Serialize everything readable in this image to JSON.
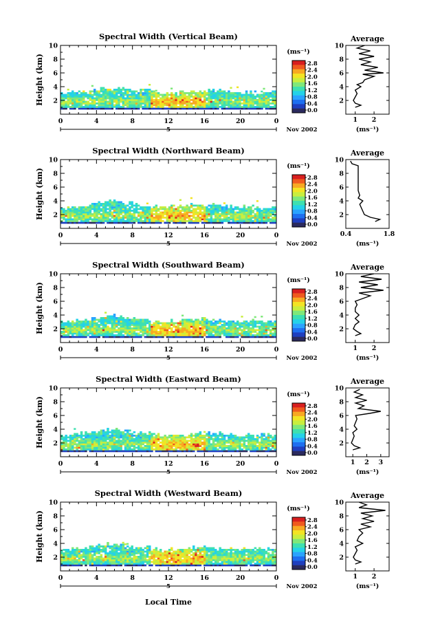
{
  "xaxis_label": "Local Time",
  "colorbar": {
    "unit_label": "(ms⁻¹)",
    "ticks": [
      "2.8",
      "2.4",
      "2.0",
      "1.6",
      "1.2",
      "0.8",
      "0.4",
      "0.0"
    ],
    "colors": [
      "#2b2a5e",
      "#1f3fbf",
      "#1e6ff0",
      "#2aa3ff",
      "#24d2e8",
      "#3ee0b0",
      "#7fe87a",
      "#c9ee3e",
      "#f3e424",
      "#f8a922",
      "#f05a1e",
      "#d81f1f"
    ]
  },
  "date_label": "Nov 2002",
  "day_label": "5",
  "avg_xlabel": "(ms⁻¹)",
  "chart_data": [
    {
      "type": "heatmap",
      "title": "Spectral Width (Vertical Beam)",
      "ylabel": "Height (km)",
      "xlim": [
        0,
        24
      ],
      "ylim": [
        0,
        10
      ],
      "xticks": [
        "0",
        "4",
        "8",
        "12",
        "16",
        "20",
        "0"
      ],
      "yticks": [
        "2",
        "4",
        "6",
        "8",
        "10"
      ],
      "cloud_top_km": [
        3.0,
        3.1,
        3.2,
        3.4,
        3.6,
        3.8,
        3.7,
        3.5,
        3.4,
        3.3,
        3.1,
        3.0,
        3.0,
        3.1,
        3.2,
        3.3,
        3.4,
        3.3,
        3.2,
        3.1,
        3.0,
        3.0,
        3.0,
        3.1,
        3.0
      ],
      "average": {
        "title": "Average",
        "xticks": [
          "1",
          "2"
        ],
        "xlim": [
          0.5,
          2.8
        ],
        "profile": [
          [
            1.0,
            1.0
          ],
          [
            1.3,
            1.3
          ],
          [
            1.0,
            1.6
          ],
          [
            0.9,
            2.0
          ],
          [
            1.0,
            2.5
          ],
          [
            1.1,
            3.0
          ],
          [
            1.0,
            3.5
          ],
          [
            1.3,
            4.0
          ],
          [
            1.1,
            4.3
          ],
          [
            1.4,
            4.6
          ],
          [
            1.5,
            5.0
          ],
          [
            2.0,
            5.5
          ],
          [
            1.4,
            5.8
          ],
          [
            2.5,
            6.0
          ],
          [
            1.5,
            6.4
          ],
          [
            2.2,
            6.8
          ],
          [
            1.3,
            7.2
          ],
          [
            1.8,
            7.6
          ],
          [
            1.2,
            8.0
          ],
          [
            2.0,
            8.4
          ],
          [
            1.2,
            8.8
          ],
          [
            1.8,
            9.2
          ],
          [
            1.1,
            9.6
          ],
          [
            1.5,
            10.0
          ]
        ]
      }
    },
    {
      "type": "heatmap",
      "title": "Spectral Width (Northward Beam)",
      "ylabel": "Height (km)",
      "xlim": [
        0,
        24
      ],
      "ylim": [
        0,
        10
      ],
      "xticks": [
        "0",
        "4",
        "8",
        "12",
        "16",
        "20",
        "0"
      ],
      "yticks": [
        "2",
        "4",
        "6",
        "8",
        "10"
      ],
      "cloud_top_km": [
        3.0,
        3.1,
        3.3,
        3.5,
        3.7,
        3.9,
        3.8,
        3.6,
        3.4,
        3.2,
        3.1,
        3.0,
        3.1,
        3.2,
        3.3,
        3.4,
        3.3,
        3.2,
        3.1,
        3.0,
        3.0,
        3.1,
        3.0,
        3.0,
        3.0
      ],
      "average": {
        "title": "Average",
        "xticks": [
          "0.4",
          "1.8"
        ],
        "xlim": [
          0.4,
          1.8
        ],
        "profile": [
          [
            1.35,
            1.0
          ],
          [
            1.5,
            1.3
          ],
          [
            1.2,
            1.6
          ],
          [
            1.0,
            2.0
          ],
          [
            0.95,
            2.5
          ],
          [
            0.9,
            3.0
          ],
          [
            0.85,
            3.5
          ],
          [
            0.95,
            4.0
          ],
          [
            0.8,
            4.4
          ],
          [
            0.85,
            4.8
          ],
          [
            0.8,
            5.5
          ],
          [
            0.8,
            6.5
          ],
          [
            0.8,
            7.5
          ],
          [
            0.8,
            8.5
          ],
          [
            0.8,
            9.1
          ],
          [
            0.6,
            9.4
          ],
          [
            0.55,
            9.8
          ]
        ]
      }
    },
    {
      "type": "heatmap",
      "title": "Spectral Width (Southward Beam)",
      "ylabel": "Height (km)",
      "xlim": [
        0,
        24
      ],
      "ylim": [
        0,
        10
      ],
      "xticks": [
        "0",
        "4",
        "8",
        "12",
        "16",
        "20",
        "0"
      ],
      "yticks": [
        "2",
        "4",
        "6",
        "8",
        "10"
      ],
      "cloud_top_km": [
        3.0,
        3.1,
        3.2,
        3.4,
        3.6,
        3.8,
        3.7,
        3.5,
        3.3,
        3.2,
        3.0,
        3.0,
        3.1,
        3.2,
        3.3,
        3.3,
        3.2,
        3.1,
        3.0,
        3.0,
        3.0,
        3.1,
        3.0,
        3.0,
        3.0
      ],
      "average": {
        "title": "Average",
        "xticks": [
          "1",
          "2"
        ],
        "xlim": [
          0.5,
          2.8
        ],
        "profile": [
          [
            1.0,
            1.0
          ],
          [
            1.3,
            1.3
          ],
          [
            1.1,
            1.6
          ],
          [
            0.9,
            2.0
          ],
          [
            1.0,
            2.6
          ],
          [
            1.2,
            3.0
          ],
          [
            1.0,
            3.5
          ],
          [
            1.2,
            4.0
          ],
          [
            1.0,
            4.5
          ],
          [
            1.0,
            5.0
          ],
          [
            1.1,
            5.5
          ],
          [
            1.0,
            6.0
          ],
          [
            1.4,
            6.4
          ],
          [
            1.8,
            6.8
          ],
          [
            1.2,
            7.2
          ],
          [
            2.5,
            7.6
          ],
          [
            1.3,
            8.0
          ],
          [
            2.2,
            8.4
          ],
          [
            1.2,
            8.8
          ],
          [
            2.4,
            9.2
          ],
          [
            1.3,
            9.6
          ],
          [
            2.0,
            10.0
          ]
        ]
      }
    },
    {
      "type": "heatmap",
      "title": "Spectral Width (Eastward Beam)",
      "ylabel": "Height (km)",
      "xlim": [
        0,
        24
      ],
      "ylim": [
        0,
        10
      ],
      "xticks": [
        "0",
        "4",
        "8",
        "12",
        "16",
        "20",
        "0"
      ],
      "yticks": [
        "2",
        "4",
        "6",
        "8",
        "10"
      ],
      "cloud_top_km": [
        3.0,
        3.1,
        3.3,
        3.5,
        3.7,
        3.9,
        3.8,
        3.6,
        3.4,
        3.3,
        3.1,
        3.0,
        3.0,
        3.1,
        3.2,
        3.3,
        3.4,
        3.3,
        3.2,
        3.1,
        3.0,
        3.0,
        3.0,
        3.1,
        3.0
      ],
      "average": {
        "title": "Average",
        "xticks": [
          "1",
          "2",
          "3"
        ],
        "xlim": [
          0.5,
          3.6
        ],
        "profile": [
          [
            1.0,
            1.0
          ],
          [
            1.5,
            1.3
          ],
          [
            1.1,
            1.6
          ],
          [
            0.9,
            2.0
          ],
          [
            1.0,
            2.5
          ],
          [
            1.1,
            3.0
          ],
          [
            1.0,
            3.5
          ],
          [
            1.3,
            4.0
          ],
          [
            1.1,
            4.5
          ],
          [
            1.2,
            5.0
          ],
          [
            1.3,
            5.5
          ],
          [
            1.2,
            6.0
          ],
          [
            2.2,
            6.3
          ],
          [
            3.0,
            6.6
          ],
          [
            1.4,
            7.0
          ],
          [
            1.8,
            7.4
          ],
          [
            1.2,
            7.8
          ],
          [
            2.0,
            8.2
          ],
          [
            1.2,
            8.6
          ],
          [
            1.7,
            9.0
          ],
          [
            1.1,
            9.4
          ],
          [
            1.5,
            9.8
          ]
        ]
      }
    },
    {
      "type": "heatmap",
      "title": "Spectral Width (Westward Beam)",
      "ylabel": "Height (km)",
      "xlim": [
        0,
        24
      ],
      "ylim": [
        0,
        10
      ],
      "xticks": [
        "0",
        "4",
        "8",
        "12",
        "16",
        "20",
        "0"
      ],
      "yticks": [
        "2",
        "4",
        "6",
        "8",
        "10"
      ],
      "cloud_top_km": [
        3.0,
        3.1,
        3.2,
        3.4,
        3.6,
        3.8,
        3.7,
        3.5,
        3.4,
        3.3,
        3.1,
        3.0,
        3.1,
        3.2,
        3.3,
        3.4,
        3.3,
        3.2,
        3.1,
        3.0,
        3.0,
        3.0,
        3.0,
        3.1,
        3.0
      ],
      "average": {
        "title": "Average",
        "xticks": [
          "1",
          "2"
        ],
        "xlim": [
          0.5,
          2.8
        ],
        "profile": [
          [
            1.0,
            1.0
          ],
          [
            1.3,
            1.3
          ],
          [
            1.0,
            1.6
          ],
          [
            0.9,
            2.0
          ],
          [
            1.0,
            2.5
          ],
          [
            1.1,
            3.0
          ],
          [
            1.0,
            3.5
          ],
          [
            1.4,
            4.0
          ],
          [
            1.1,
            4.4
          ],
          [
            1.2,
            5.0
          ],
          [
            1.4,
            5.5
          ],
          [
            1.2,
            6.0
          ],
          [
            1.8,
            6.4
          ],
          [
            1.3,
            6.8
          ],
          [
            2.0,
            7.2
          ],
          [
            1.4,
            7.6
          ],
          [
            1.9,
            8.0
          ],
          [
            1.3,
            8.4
          ],
          [
            2.6,
            8.8
          ],
          [
            1.2,
            9.2
          ],
          [
            1.6,
            9.6
          ],
          [
            1.2,
            10.0
          ]
        ]
      }
    }
  ]
}
